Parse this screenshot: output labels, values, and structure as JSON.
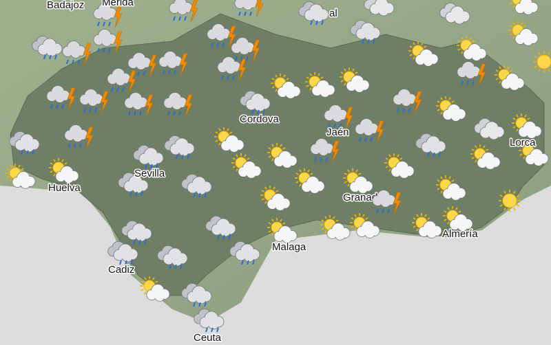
{
  "labels": [
    "Badajoz",
    "Merida",
    "al",
    "Cordova",
    "Jaén",
    "Sevilla",
    "Huelva",
    "Lorca",
    "Granada",
    "Malaga",
    "Almería",
    "Cadiz",
    "Ceuta"
  ]
}
